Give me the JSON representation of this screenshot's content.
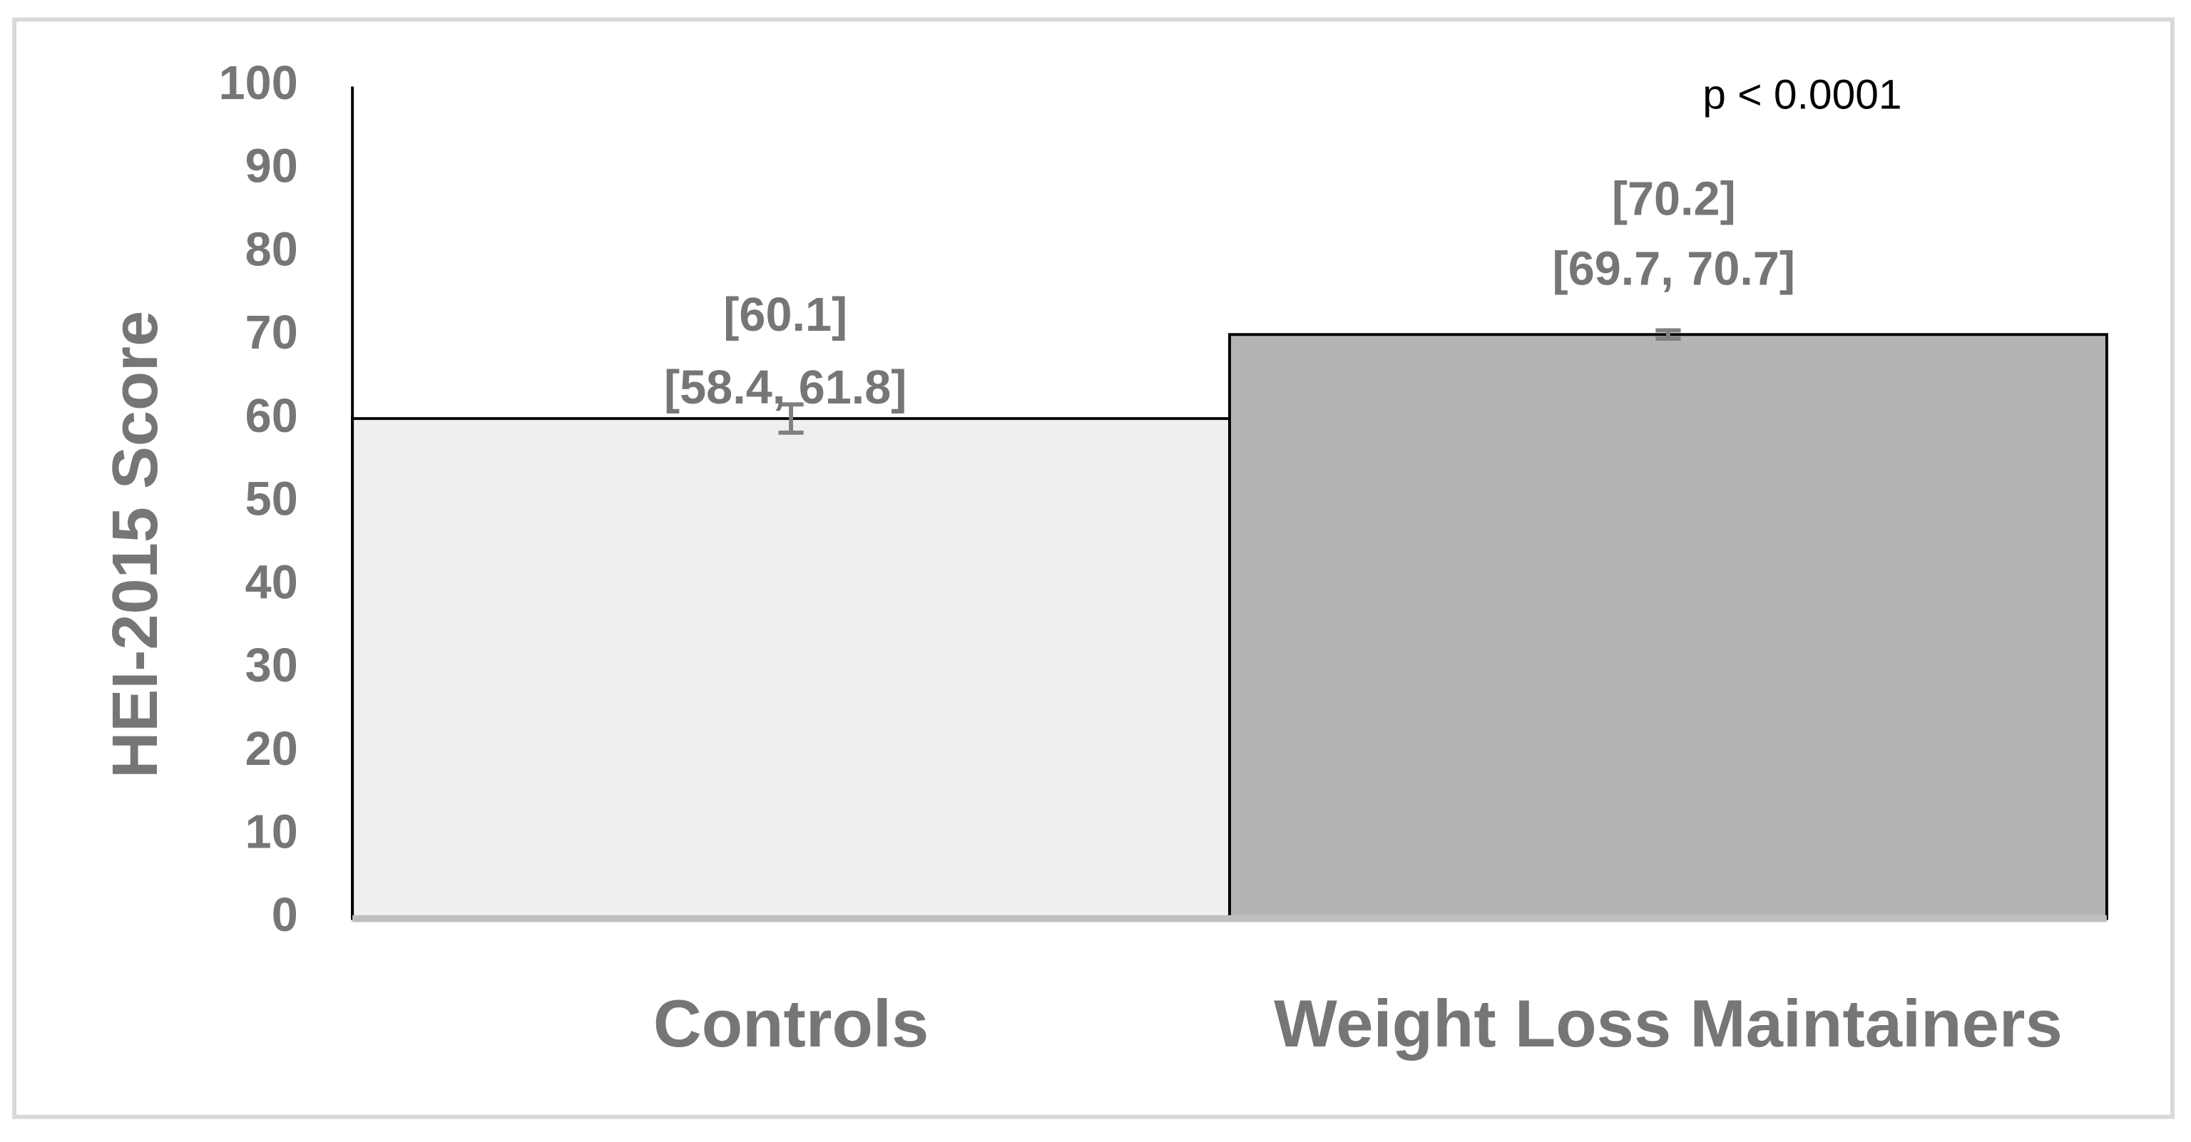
{
  "chart_data": {
    "type": "bar",
    "y_label": "HEI-2015 Score",
    "annotation": "p < 0.0001",
    "categories": [
      "Controls",
      "Weight Loss Maintainers"
    ],
    "values": [
      60.1,
      70.2
    ],
    "value_labels": [
      "[60.1]",
      "[70.2]"
    ],
    "ci": [
      [
        58.4,
        61.8
      ],
      [
        69.7,
        70.7
      ]
    ],
    "ci_labels": [
      "[58.4, 61.8]",
      "[69.7, 70.7]"
    ],
    "colors": [
      "#efefef",
      "#b5b4b4"
    ],
    "ylim": [
      0,
      100
    ],
    "yticks": [
      0,
      10,
      20,
      30,
      40,
      50,
      60,
      70,
      80,
      90,
      100
    ],
    "grid": false
  }
}
